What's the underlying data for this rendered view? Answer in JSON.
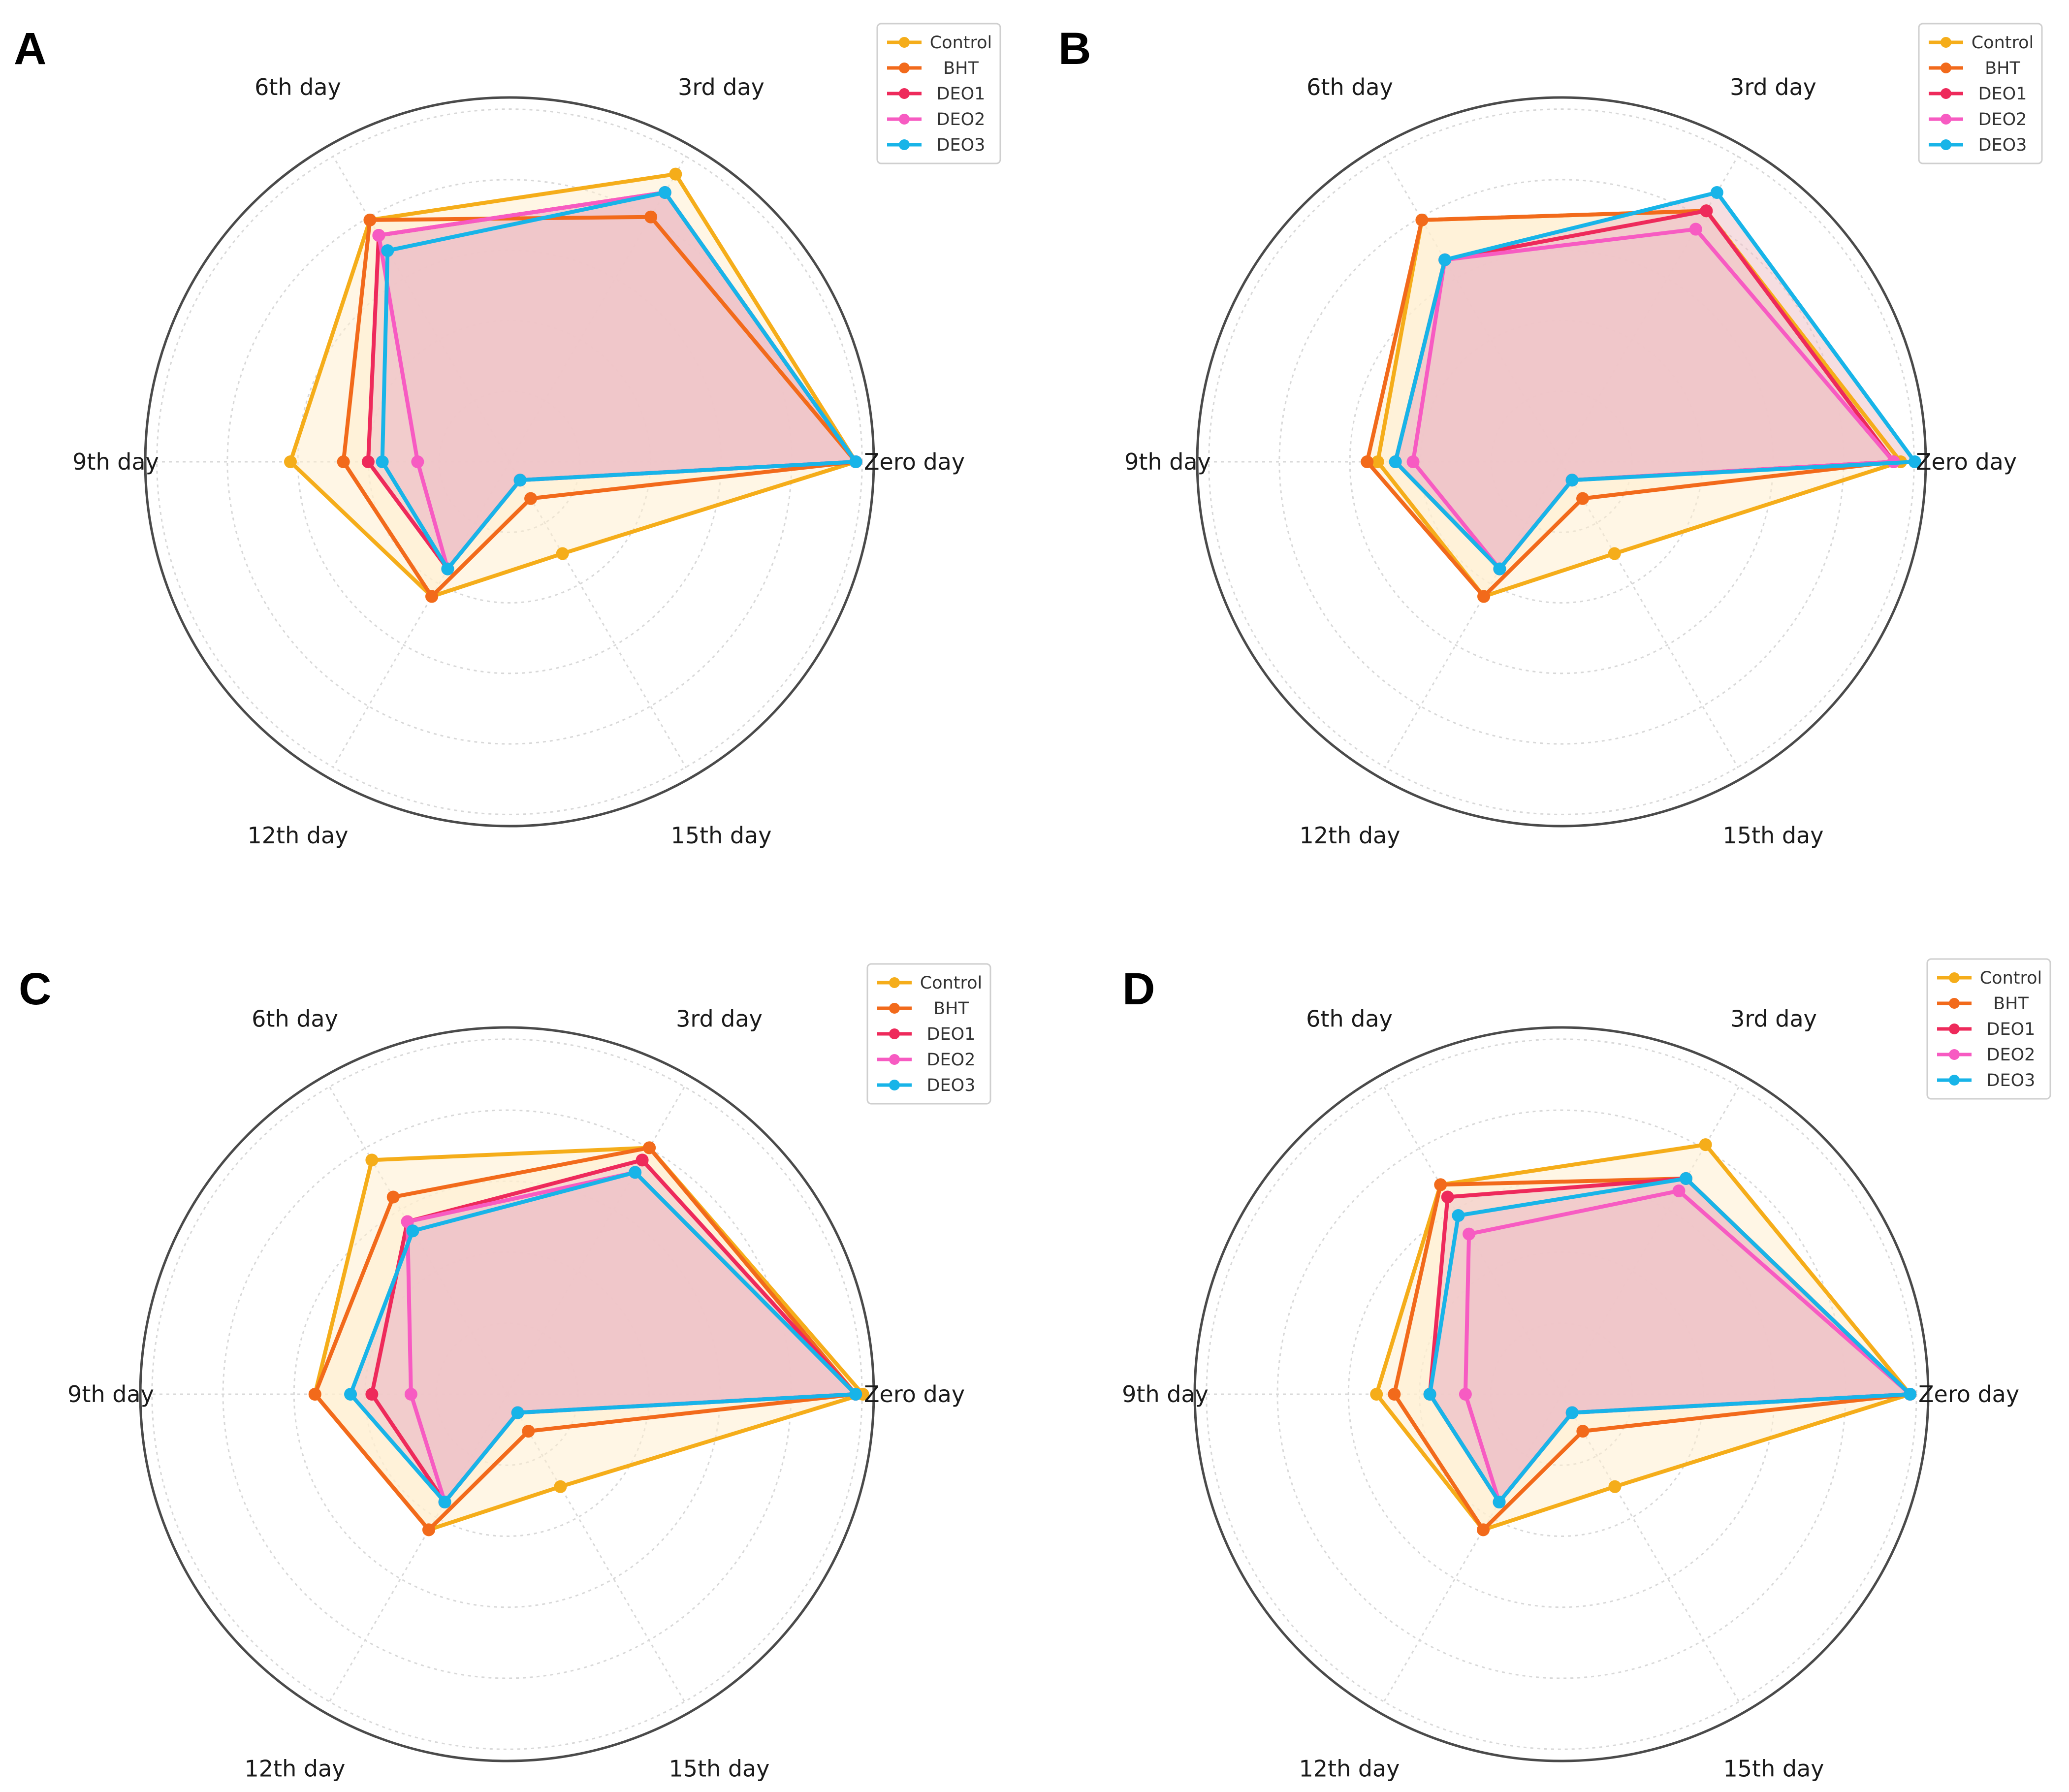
{
  "axes": [
    "Zero day",
    "3rd day",
    "6th day",
    "9th day",
    "12th day",
    "15th day"
  ],
  "series_colors": {
    "Control": "#F5AD1A",
    "BHT": "#F26A1B",
    "DEO1": "#EE2A5B",
    "DEO2": "#F75BC2",
    "DEO3": "#18B4E8"
  },
  "fill_colors": {
    "outer": "#FFEFD0",
    "inner": "#EFC2C8"
  },
  "chart_data": [
    {
      "type": "radar",
      "panel": "A",
      "axes": [
        "Zero day",
        "3rd day",
        "6th day",
        "9th day",
        "12th day",
        "15th day"
      ],
      "rlim": [
        0,
        1
      ],
      "rings": 5,
      "legend_position": "top-right",
      "series": [
        {
          "name": "Control",
          "values": [
            0.98,
            0.94,
            0.79,
            0.62,
            0.44,
            0.3
          ]
        },
        {
          "name": "BHT",
          "values": [
            0.98,
            0.8,
            0.79,
            0.47,
            0.44,
            0.12
          ]
        },
        {
          "name": "DEO1",
          "values": [
            0.98,
            0.88,
            0.74,
            0.4,
            0.35,
            0.06
          ]
        },
        {
          "name": "DEO2",
          "values": [
            0.98,
            0.88,
            0.74,
            0.26,
            0.35,
            0.06
          ]
        },
        {
          "name": "DEO3",
          "values": [
            0.98,
            0.88,
            0.69,
            0.36,
            0.35,
            0.06
          ]
        }
      ]
    },
    {
      "type": "radar",
      "panel": "B",
      "axes": [
        "Zero day",
        "3rd day",
        "6th day",
        "9th day",
        "12th day",
        "15th day"
      ],
      "rlim": [
        0,
        1
      ],
      "rings": 5,
      "legend_position": "top-right",
      "series": [
        {
          "name": "Control",
          "values": [
            0.96,
            0.82,
            0.79,
            0.52,
            0.44,
            0.3
          ]
        },
        {
          "name": "BHT",
          "values": [
            0.94,
            0.82,
            0.79,
            0.55,
            0.44,
            0.12
          ]
        },
        {
          "name": "DEO1",
          "values": [
            0.94,
            0.82,
            0.66,
            0.47,
            0.35,
            0.06
          ]
        },
        {
          "name": "DEO2",
          "values": [
            0.94,
            0.76,
            0.66,
            0.42,
            0.35,
            0.06
          ]
        },
        {
          "name": "DEO3",
          "values": [
            1.0,
            0.88,
            0.66,
            0.47,
            0.35,
            0.06
          ]
        }
      ]
    },
    {
      "type": "radar",
      "panel": "C",
      "axes": [
        "Zero day",
        "3rd day",
        "6th day",
        "9th day",
        "12th day",
        "15th day"
      ],
      "rlim": [
        0,
        1
      ],
      "rings": 5,
      "legend_position": "top-right",
      "series": [
        {
          "name": "Control",
          "values": [
            1.0,
            0.8,
            0.76,
            0.54,
            0.44,
            0.3
          ]
        },
        {
          "name": "BHT",
          "values": [
            0.98,
            0.8,
            0.64,
            0.54,
            0.44,
            0.12
          ]
        },
        {
          "name": "DEO1",
          "values": [
            0.98,
            0.76,
            0.56,
            0.38,
            0.35,
            0.06
          ]
        },
        {
          "name": "DEO2",
          "values": [
            0.98,
            0.72,
            0.56,
            0.27,
            0.35,
            0.06
          ]
        },
        {
          "name": "DEO3",
          "values": [
            0.98,
            0.72,
            0.53,
            0.44,
            0.35,
            0.06
          ]
        }
      ]
    },
    {
      "type": "radar",
      "panel": "D",
      "axes": [
        "Zero day",
        "3rd day",
        "6th day",
        "9th day",
        "12th day",
        "15th day"
      ],
      "rlim": [
        0,
        1
      ],
      "rings": 5,
      "legend_position": "top-right",
      "series": [
        {
          "name": "Control",
          "values": [
            0.98,
            0.81,
            0.68,
            0.52,
            0.44,
            0.3
          ]
        },
        {
          "name": "BHT",
          "values": [
            0.98,
            0.7,
            0.68,
            0.47,
            0.44,
            0.12
          ]
        },
        {
          "name": "DEO1",
          "values": [
            0.98,
            0.7,
            0.64,
            0.37,
            0.35,
            0.06
          ]
        },
        {
          "name": "DEO2",
          "values": [
            0.98,
            0.66,
            0.52,
            0.27,
            0.35,
            0.06
          ]
        },
        {
          "name": "DEO3",
          "values": [
            0.98,
            0.7,
            0.58,
            0.37,
            0.35,
            0.06
          ]
        }
      ]
    }
  ]
}
